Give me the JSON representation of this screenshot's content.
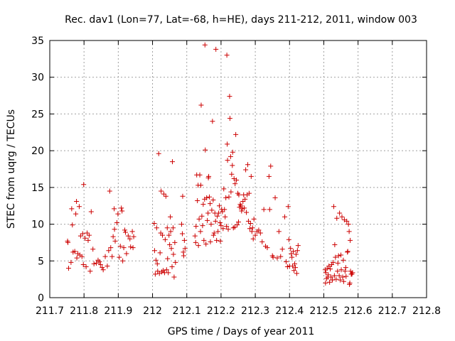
{
  "chart_data": {
    "type": "scatter",
    "title": "Rec. dav1 (Lon=77, Lat=-68, h=HE), days 211-212, 2011, window 003",
    "xlabel": "GPS time / Days of year 2011",
    "ylabel": "STEC from uqrg / TECUs",
    "xlim": [
      211.7,
      212.8
    ],
    "ylim": [
      0,
      35
    ],
    "xticks": [
      211.7,
      211.8,
      211.9,
      212.0,
      212.1,
      212.2,
      212.3,
      212.4,
      212.5,
      212.6,
      212.7,
      212.8
    ],
    "xtick_labels": [
      "211.7",
      "211.8",
      "211.9",
      "212",
      "212.1",
      "212.2",
      "212.3",
      "212.4",
      "212.5",
      "212.6",
      "212.7",
      "212.8"
    ],
    "yticks": [
      0,
      5,
      10,
      15,
      20,
      25,
      30,
      35
    ],
    "ytick_labels": [
      "0",
      "5",
      "10",
      "15",
      "20",
      "25",
      "30",
      "35"
    ],
    "grid": true,
    "marker": "+",
    "color": "#cc0000",
    "series": [
      {
        "name": "STEC",
        "points": [
          [
            211.752,
            7.7
          ],
          [
            211.753,
            7.5
          ],
          [
            211.755,
            4.0
          ],
          [
            211.762,
            4.8
          ],
          [
            211.764,
            12.1
          ],
          [
            211.766,
            9.9
          ],
          [
            211.768,
            6.2
          ],
          [
            211.773,
            6.3
          ],
          [
            211.776,
            11.4
          ],
          [
            211.778,
            13.1
          ],
          [
            211.779,
            5.4
          ],
          [
            211.782,
            6.0
          ],
          [
            211.786,
            12.4
          ],
          [
            211.788,
            5.8
          ],
          [
            211.79,
            8.4
          ],
          [
            211.794,
            5.6
          ],
          [
            211.796,
            8.7
          ],
          [
            211.798,
            4.5
          ],
          [
            211.799,
            15.4
          ],
          [
            211.803,
            8.1
          ],
          [
            211.806,
            4.2
          ],
          [
            211.809,
            8.8
          ],
          [
            211.812,
            7.8
          ],
          [
            211.815,
            8.5
          ],
          [
            211.818,
            3.6
          ],
          [
            211.821,
            11.7
          ],
          [
            211.826,
            6.6
          ],
          [
            211.829,
            4.6
          ],
          [
            211.836,
            4.7
          ],
          [
            211.841,
            5.1
          ],
          [
            211.845,
            4.9
          ],
          [
            211.848,
            4.5
          ],
          [
            211.853,
            4.1
          ],
          [
            211.856,
            3.8
          ],
          [
            211.862,
            5.6
          ],
          [
            211.868,
            4.3
          ],
          [
            211.872,
            6.4
          ],
          [
            211.875,
            14.5
          ],
          [
            211.878,
            6.8
          ],
          [
            211.882,
            5.6
          ],
          [
            211.885,
            8.3
          ],
          [
            211.888,
            12.1
          ],
          [
            211.889,
            9.3
          ],
          [
            211.891,
            7.7
          ],
          [
            211.896,
            10.2
          ],
          [
            211.899,
            11.4
          ],
          [
            211.903,
            5.5
          ],
          [
            211.906,
            7.0
          ],
          [
            211.909,
            12.2
          ],
          [
            211.911,
            11.8
          ],
          [
            211.913,
            5.0
          ],
          [
            211.916,
            6.8
          ],
          [
            211.919,
            9.2
          ],
          [
            211.921,
            8.9
          ],
          [
            211.924,
            6.0
          ],
          [
            211.929,
            8.4
          ],
          [
            211.934,
            8.0
          ],
          [
            211.936,
            6.9
          ],
          [
            211.941,
            9.0
          ],
          [
            211.943,
            6.8
          ],
          [
            211.945,
            8.3
          ],
          [
            212.005,
            10.1
          ],
          [
            212.006,
            6.4
          ],
          [
            212.008,
            3.2
          ],
          [
            212.01,
            5.1
          ],
          [
            212.012,
            9.5
          ],
          [
            212.014,
            4.6
          ],
          [
            212.015,
            3.6
          ],
          [
            212.018,
            19.6
          ],
          [
            212.02,
            3.3
          ],
          [
            212.022,
            6.1
          ],
          [
            212.024,
            8.8
          ],
          [
            212.025,
            14.5
          ],
          [
            212.027,
            3.5
          ],
          [
            212.029,
            8.5
          ],
          [
            212.031,
            3.7
          ],
          [
            212.033,
            14.1
          ],
          [
            212.035,
            3.4
          ],
          [
            212.037,
            7.9
          ],
          [
            212.039,
            13.8
          ],
          [
            212.041,
            3.8
          ],
          [
            212.043,
            9.5
          ],
          [
            212.044,
            5.3
          ],
          [
            212.046,
            3.4
          ],
          [
            212.048,
            8.5
          ],
          [
            212.05,
            7.2
          ],
          [
            212.052,
            11.0
          ],
          [
            212.053,
            9.0
          ],
          [
            212.055,
            6.7
          ],
          [
            212.057,
            4.2
          ],
          [
            212.058,
            18.5
          ],
          [
            212.06,
            9.5
          ],
          [
            212.061,
            5.9
          ],
          [
            212.063,
            2.8
          ],
          [
            212.065,
            7.5
          ],
          [
            212.067,
            4.8
          ],
          [
            212.085,
            10.0
          ],
          [
            212.087,
            8.7
          ],
          [
            212.088,
            13.8
          ],
          [
            212.09,
            6.2
          ],
          [
            212.091,
            5.7
          ],
          [
            212.093,
            7.8
          ],
          [
            212.095,
            6.7
          ],
          [
            212.124,
            8.4
          ],
          [
            212.126,
            7.5
          ],
          [
            212.127,
            9.7
          ],
          [
            212.129,
            16.7
          ],
          [
            212.131,
            13.2
          ],
          [
            212.133,
            15.3
          ],
          [
            212.134,
            7.1
          ],
          [
            212.136,
            10.7
          ],
          [
            212.138,
            16.7
          ],
          [
            212.14,
            9.0
          ],
          [
            212.141,
            15.3
          ],
          [
            212.142,
            26.2
          ],
          [
            212.144,
            11.1
          ],
          [
            212.146,
            9.8
          ],
          [
            212.148,
            12.7
          ],
          [
            212.15,
            7.8
          ],
          [
            212.152,
            13.4
          ],
          [
            212.153,
            34.4
          ],
          [
            212.154,
            20.1
          ],
          [
            212.156,
            7.3
          ],
          [
            212.158,
            13.6
          ],
          [
            212.16,
            10.5
          ],
          [
            212.162,
            11.5
          ],
          [
            212.163,
            16.3
          ],
          [
            212.164,
            16.5
          ],
          [
            212.166,
            13.7
          ],
          [
            212.168,
            12.8
          ],
          [
            212.169,
            7.6
          ],
          [
            212.171,
            10.0
          ],
          [
            212.173,
            11.9
          ],
          [
            212.175,
            24.0
          ],
          [
            212.177,
            13.3
          ],
          [
            212.178,
            8.5
          ],
          [
            212.18,
            8.8
          ],
          [
            212.182,
            11.5
          ],
          [
            212.184,
            10.4
          ],
          [
            212.185,
            33.8
          ],
          [
            212.187,
            7.8
          ],
          [
            212.189,
            11.1
          ],
          [
            212.191,
            9.0
          ],
          [
            212.193,
            11.5
          ],
          [
            212.195,
            12.5
          ],
          [
            212.197,
            10.2
          ],
          [
            212.198,
            7.7
          ],
          [
            212.2,
            9.8
          ],
          [
            212.202,
            12.0
          ],
          [
            212.204,
            11.7
          ],
          [
            212.206,
            9.4
          ],
          [
            212.208,
            14.8
          ],
          [
            212.21,
            12.0
          ],
          [
            212.212,
            11.0
          ],
          [
            212.214,
            13.6
          ],
          [
            212.216,
            9.7
          ],
          [
            212.217,
            33.0
          ],
          [
            212.218,
            20.9
          ],
          [
            212.219,
            18.7
          ],
          [
            212.221,
            9.3
          ],
          [
            212.223,
            13.7
          ],
          [
            212.225,
            27.4
          ],
          [
            212.226,
            24.4
          ],
          [
            212.228,
            19.2
          ],
          [
            212.229,
            14.4
          ],
          [
            212.231,
            16.8
          ],
          [
            212.233,
            18.0
          ],
          [
            212.234,
            19.8
          ],
          [
            212.236,
            9.5
          ],
          [
            212.238,
            16.2
          ],
          [
            212.24,
            9.6
          ],
          [
            212.241,
            15.5
          ],
          [
            212.243,
            22.2
          ],
          [
            212.245,
            16.0
          ],
          [
            212.247,
            9.9
          ],
          [
            212.249,
            14.2
          ],
          [
            212.251,
            10.3
          ],
          [
            212.252,
            14.0
          ],
          [
            212.254,
            12.3
          ],
          [
            212.256,
            12.7
          ],
          [
            212.258,
            12.5
          ],
          [
            212.26,
            11.8
          ],
          [
            212.262,
            12.1
          ],
          [
            212.264,
            13.1
          ],
          [
            212.266,
            14.0
          ],
          [
            212.268,
            12.2
          ],
          [
            212.27,
            13.4
          ],
          [
            212.272,
            17.4
          ],
          [
            212.274,
            11.6
          ],
          [
            212.276,
            14.0
          ],
          [
            212.278,
            18.1
          ],
          [
            212.28,
            10.4
          ],
          [
            212.282,
            14.2
          ],
          [
            212.284,
            9.4
          ],
          [
            212.286,
            10.1
          ],
          [
            212.288,
            16.5
          ],
          [
            212.29,
            9.0
          ],
          [
            212.292,
            9.5
          ],
          [
            212.294,
            8.0
          ],
          [
            212.296,
            10.7
          ],
          [
            212.3,
            8.5
          ],
          [
            212.305,
            9.0
          ],
          [
            212.31,
            9.2
          ],
          [
            212.315,
            8.8
          ],
          [
            212.32,
            7.6
          ],
          [
            212.325,
            12.0
          ],
          [
            212.33,
            7.0
          ],
          [
            212.335,
            6.8
          ],
          [
            212.34,
            16.5
          ],
          [
            212.342,
            12.0
          ],
          [
            212.345,
            17.9
          ],
          [
            212.35,
            5.7
          ],
          [
            212.352,
            5.5
          ],
          [
            212.358,
            13.6
          ],
          [
            212.364,
            5.4
          ],
          [
            212.369,
            9.0
          ],
          [
            212.374,
            5.6
          ],
          [
            212.379,
            6.6
          ],
          [
            212.386,
            11.0
          ],
          [
            212.39,
            4.9
          ],
          [
            212.394,
            4.2
          ],
          [
            212.396,
            12.4
          ],
          [
            212.398,
            7.9
          ],
          [
            212.4,
            4.3
          ],
          [
            212.403,
            6.7
          ],
          [
            212.405,
            6.0
          ],
          [
            212.407,
            5.5
          ],
          [
            212.409,
            4.3
          ],
          [
            212.411,
            6.3
          ],
          [
            212.413,
            3.7
          ],
          [
            212.415,
            4.6
          ],
          [
            212.417,
            4.1
          ],
          [
            212.419,
            5.9
          ],
          [
            212.421,
            3.3
          ],
          [
            212.423,
            6.4
          ],
          [
            212.425,
            7.1
          ],
          [
            212.504,
            3.8
          ],
          [
            212.505,
            2.0
          ],
          [
            212.506,
            3.4
          ],
          [
            212.508,
            2.6
          ],
          [
            212.51,
            4.0
          ],
          [
            212.512,
            2.8
          ],
          [
            212.513,
            3.1
          ],
          [
            212.515,
            4.3
          ],
          [
            212.517,
            2.1
          ],
          [
            212.519,
            3.9
          ],
          [
            212.521,
            2.8
          ],
          [
            212.523,
            4.5
          ],
          [
            212.525,
            2.4
          ],
          [
            212.527,
            4.8
          ],
          [
            212.529,
            12.4
          ],
          [
            212.531,
            3.0
          ],
          [
            212.532,
            7.2
          ],
          [
            212.534,
            5.5
          ],
          [
            212.536,
            2.5
          ],
          [
            212.538,
            10.8
          ],
          [
            212.54,
            3.6
          ],
          [
            212.541,
            4.7
          ],
          [
            212.543,
            5.7
          ],
          [
            212.545,
            3.0
          ],
          [
            212.546,
            11.5
          ],
          [
            212.548,
            2.4
          ],
          [
            212.55,
            5.8
          ],
          [
            212.551,
            3.8
          ],
          [
            212.553,
            11.0
          ],
          [
            212.555,
            2.8
          ],
          [
            212.557,
            5.1
          ],
          [
            212.558,
            2.2
          ],
          [
            212.56,
            10.6
          ],
          [
            212.562,
            3.6
          ],
          [
            212.564,
            4.1
          ],
          [
            212.565,
            2.9
          ],
          [
            212.567,
            10.4
          ],
          [
            212.569,
            6.2
          ],
          [
            212.57,
            6.3
          ],
          [
            212.572,
            10.0
          ],
          [
            212.574,
            9.0
          ],
          [
            212.575,
            1.8
          ],
          [
            212.576,
            2.0
          ],
          [
            212.577,
            7.8
          ],
          [
            212.578,
            3.6
          ],
          [
            212.58,
            3.2
          ],
          [
            212.582,
            3.2
          ],
          [
            212.584,
            3.4
          ]
        ]
      }
    ]
  }
}
